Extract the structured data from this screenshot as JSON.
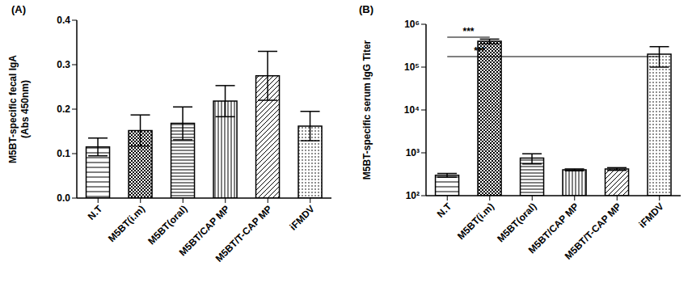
{
  "chart_data": [
    {
      "type": "bar",
      "title": "(A)",
      "ylabel": [
        "M5BT-specific fecal IgA",
        "(Abs 450nm)"
      ],
      "categories": [
        "N.T",
        "M5BT(i.m)",
        "M5BT(oral)",
        "M5BT/CAP MP",
        "M5BT/T-CAP MP",
        "iFMDV"
      ],
      "values": [
        0.115,
        0.152,
        0.168,
        0.218,
        0.275,
        0.162
      ],
      "errors": [
        0.02,
        0.035,
        0.037,
        0.035,
        0.055,
        0.033
      ],
      "color": "#000000",
      "ylim": [
        0,
        0.4
      ],
      "yticks": [
        {
          "value": 0,
          "label": "0.0"
        },
        {
          "value": 0.1,
          "label": "0.1"
        },
        {
          "value": 0.2,
          "label": "0.2"
        },
        {
          "value": 0.3,
          "label": "0.3"
        },
        {
          "value": 0.4,
          "label": "0.4"
        }
      ]
    },
    {
      "type": "bar",
      "title": "(B)",
      "ylabel": "M5BT-specific serum IgG Titer",
      "log": "y",
      "categories": [
        "N.T",
        "M5BT(i.m)",
        "M5BT(oral)",
        "M5BT/CAP MP",
        "M5BT/T-CAP MP",
        "iFMDV"
      ],
      "values": [
        300,
        400000,
        750,
        400,
        420,
        200000
      ],
      "errors": [
        30,
        50000,
        200,
        20,
        30,
        100000
      ],
      "color": "#000000",
      "ylim": [
        100,
        1000000
      ],
      "yticks": [
        {
          "value": 100,
          "label": "10²"
        },
        {
          "value": 1000,
          "label": "10³"
        },
        {
          "value": 10000,
          "label": "10⁴"
        },
        {
          "value": 100000,
          "label": "10⁵"
        },
        {
          "value": 1000000,
          "label": "10⁶"
        }
      ],
      "annotations": [
        {
          "text": "***",
          "from": "N.T",
          "to": "M5BT(i.m)"
        },
        {
          "text": "***",
          "from": "N.T",
          "to": "iFMDV"
        }
      ]
    }
  ]
}
